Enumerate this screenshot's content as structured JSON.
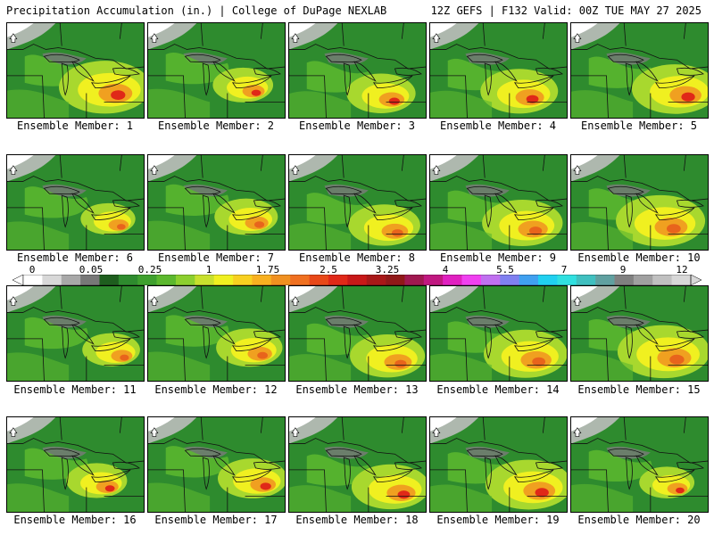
{
  "header": {
    "title_left": "Precipitation Accumulation (in.) | College of DuPage NEXLAB",
    "title_right": "12Z GEFS | F132 Valid: 00Z TUE MAY 27 2025"
  },
  "colors": {
    "land_base": "#2e8b2e",
    "light_green": "#5cb82e",
    "yellow_green": "#a8d82e",
    "yellow": "#f0f020",
    "orange": "#f0a020",
    "red": "#e02818",
    "gray_dark": "#7a7a7a",
    "gray_light": "#bdbdbd"
  },
  "colorbar": {
    "labels": [
      "0",
      "0.05",
      "0.25",
      "1",
      "1.75",
      "2.5",
      "3.25",
      "4",
      "5.5",
      "7",
      "9",
      "12"
    ],
    "colors": [
      "#ffffff",
      "#d8d8d8",
      "#a8a8a8",
      "#787878",
      "#1e5e1e",
      "#2e8b2e",
      "#3fa02e",
      "#5cb82e",
      "#8ccf2e",
      "#c8e02e",
      "#f0f020",
      "#f8d020",
      "#f8b020",
      "#f09020",
      "#f07020",
      "#e84818",
      "#e02818",
      "#c81818",
      "#a81818",
      "#901818",
      "#a01850",
      "#c01880",
      "#e020c0",
      "#f040f0",
      "#c070f0",
      "#8080f0",
      "#40a0f0",
      "#20d0f0",
      "#30e0e0",
      "#40c0c0",
      "#60a0a0",
      "#808080",
      "#a0a0a0",
      "#c0c0c0",
      "#d8d8d8"
    ]
  },
  "members": [
    {
      "label": "Ensemble Member: 1"
    },
    {
      "label": "Ensemble Member: 2"
    },
    {
      "label": "Ensemble Member: 3"
    },
    {
      "label": "Ensemble Member: 4"
    },
    {
      "label": "Ensemble Member: 5"
    },
    {
      "label": "Ensemble Member: 6"
    },
    {
      "label": "Ensemble Member: 7"
    },
    {
      "label": "Ensemble Member: 8"
    },
    {
      "label": "Ensemble Member: 9"
    },
    {
      "label": "Ensemble Member: 10"
    },
    {
      "label": "Ensemble Member: 11"
    },
    {
      "label": "Ensemble Member: 12"
    },
    {
      "label": "Ensemble Member: 13"
    },
    {
      "label": "Ensemble Member: 14"
    },
    {
      "label": "Ensemble Member: 15"
    },
    {
      "label": "Ensemble Member: 16"
    },
    {
      "label": "Ensemble Member: 17"
    },
    {
      "label": "Ensemble Member: 18"
    },
    {
      "label": "Ensemble Member: 19"
    },
    {
      "label": "Ensemble Member: 20"
    }
  ]
}
